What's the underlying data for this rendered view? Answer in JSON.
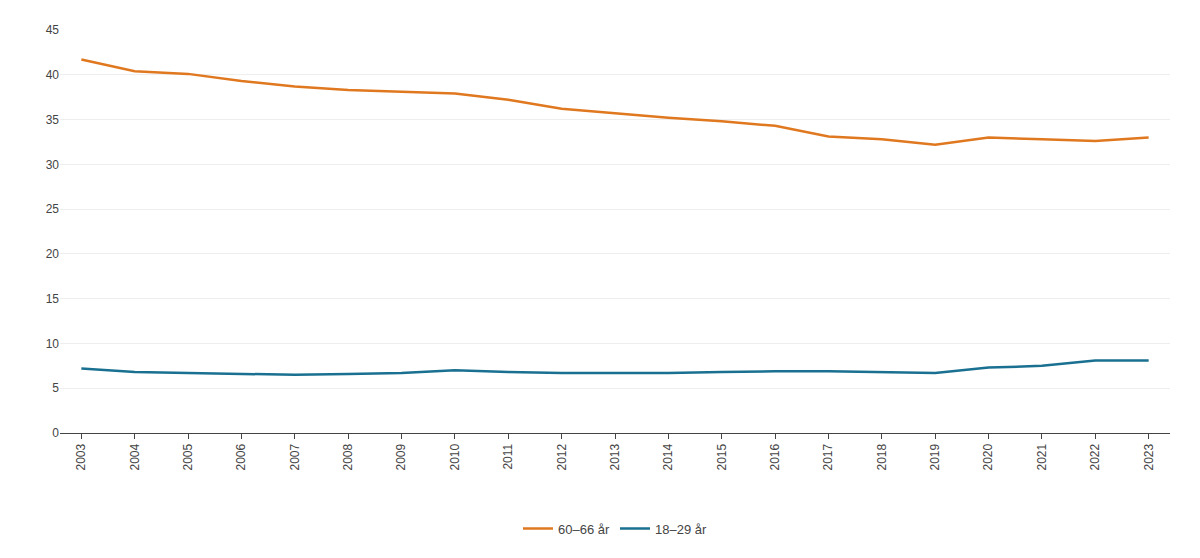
{
  "chart_data": {
    "type": "line",
    "x": [
      2003,
      2004,
      2005,
      2006,
      2007,
      2008,
      2009,
      2010,
      2011,
      2012,
      2013,
      2014,
      2015,
      2016,
      2017,
      2018,
      2019,
      2020,
      2021,
      2022,
      2023
    ],
    "series": [
      {
        "name": "60–66 år",
        "color": "#E07820",
        "values": [
          41.7,
          40.4,
          40.1,
          39.3,
          38.7,
          38.3,
          38.1,
          37.9,
          37.2,
          36.2,
          35.7,
          35.2,
          34.8,
          34.3,
          33.1,
          32.8,
          32.2,
          33.0,
          32.8,
          32.6,
          33.0
        ]
      },
      {
        "name": "18–29 år",
        "color": "#1A7090",
        "values": [
          7.2,
          6.8,
          6.7,
          6.6,
          6.5,
          6.6,
          6.7,
          7.0,
          6.8,
          6.7,
          6.7,
          6.7,
          6.8,
          6.9,
          6.9,
          6.8,
          6.7,
          7.3,
          7.5,
          8.1,
          8.1
        ]
      }
    ],
    "xlim": [
      2002.6,
      2023.4
    ],
    "xticks": [
      2003,
      2004,
      2005,
      2006,
      2007,
      2008,
      2009,
      2010,
      2011,
      2012,
      2013,
      2014,
      2015,
      2016,
      2017,
      2018,
      2019,
      2020,
      2021,
      2022,
      2023
    ],
    "ylim": [
      0,
      45
    ],
    "yticks": [
      0,
      5,
      10,
      15,
      20,
      25,
      30,
      35,
      40,
      45
    ],
    "grid": true,
    "legend": "bottom"
  }
}
